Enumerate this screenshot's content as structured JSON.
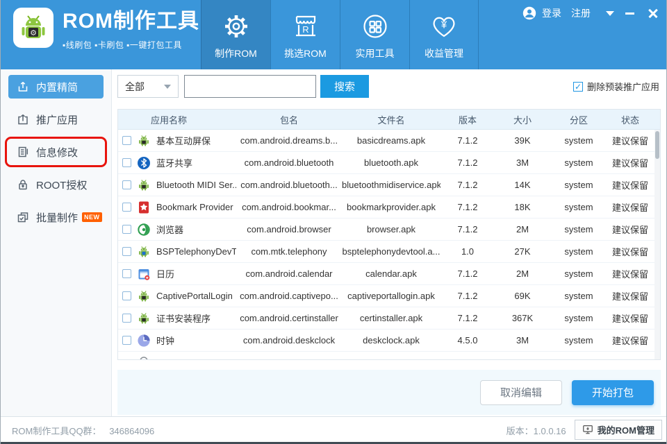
{
  "header": {
    "title": "ROM制作工具",
    "subtitle": "▪线刷包  ▪卡刷包  ▪一键打包工具",
    "account": {
      "login": "登录",
      "register": "注册"
    },
    "tabs": [
      {
        "label": "制作ROM",
        "icon": "gear-icon",
        "active": true
      },
      {
        "label": "挑选ROM",
        "icon": "store-icon",
        "active": false
      },
      {
        "label": "实用工具",
        "icon": "grid-icon",
        "active": false
      },
      {
        "label": "收益管理",
        "icon": "heart-yen-icon",
        "active": false
      }
    ]
  },
  "sidebar": {
    "items": [
      {
        "label": "内置精简",
        "icon": "trim-icon",
        "active": true
      },
      {
        "label": "推广应用",
        "icon": "promote-icon",
        "active": false
      },
      {
        "label": "信息修改",
        "icon": "info-edit-icon",
        "active": false,
        "annotated": true
      },
      {
        "label": "ROOT授权",
        "icon": "lock-icon",
        "active": false
      },
      {
        "label": "批量制作",
        "icon": "batch-icon",
        "active": false,
        "badge": "NEW"
      }
    ]
  },
  "filter": {
    "category_selected": "全部",
    "search_value": "",
    "search_button": "搜索",
    "checkbox_label": "删除预装推广应用",
    "checkbox_checked": true,
    "check_glyph": "✓"
  },
  "table": {
    "columns": [
      "应用名称",
      "包名",
      "文件名",
      "版本",
      "大小",
      "分区",
      "状态"
    ],
    "rows": [
      {
        "icon": "android",
        "app_name": "基本互动屏保",
        "package": "com.android.dreams.b...",
        "file": "basicdreams.apk",
        "version": "7.1.2",
        "size": "39K",
        "partition": "system",
        "status": "建议保留"
      },
      {
        "icon": "bluetooth",
        "app_name": "蓝牙共享",
        "package": "com.android.bluetooth",
        "file": "bluetooth.apk",
        "version": "7.1.2",
        "size": "3M",
        "partition": "system",
        "status": "建议保留"
      },
      {
        "icon": "android",
        "app_name": "Bluetooth MIDI Ser...",
        "package": "com.android.bluetooth...",
        "file": "bluetoothmidiservice.apk",
        "version": "7.1.2",
        "size": "14K",
        "partition": "system",
        "status": "建议保留"
      },
      {
        "icon": "bookmark",
        "app_name": "Bookmark Provider",
        "package": "com.android.bookmar...",
        "file": "bookmarkprovider.apk",
        "version": "7.1.2",
        "size": "18K",
        "partition": "system",
        "status": "建议保留"
      },
      {
        "icon": "browser",
        "app_name": "浏览器",
        "package": "com.android.browser",
        "file": "browser.apk",
        "version": "7.1.2",
        "size": "2M",
        "partition": "system",
        "status": "建议保留"
      },
      {
        "icon": "android-phone",
        "app_name": "BSPTelephonyDevT...",
        "package": "com.mtk.telephony",
        "file": "bsptelephonydevtool.a...",
        "version": "1.0",
        "size": "27K",
        "partition": "system",
        "status": "建议保留"
      },
      {
        "icon": "calendar",
        "app_name": "日历",
        "package": "com.android.calendar",
        "file": "calendar.apk",
        "version": "7.1.2",
        "size": "2M",
        "partition": "system",
        "status": "建议保留"
      },
      {
        "icon": "android",
        "app_name": "CaptivePortalLogin",
        "package": "com.android.captivepo...",
        "file": "captiveportallogin.apk",
        "version": "7.1.2",
        "size": "69K",
        "partition": "system",
        "status": "建议保留"
      },
      {
        "icon": "android",
        "app_name": "证书安装程序",
        "package": "com.android.certinstaller",
        "file": "certinstaller.apk",
        "version": "7.1.2",
        "size": "367K",
        "partition": "system",
        "status": "建议保留"
      },
      {
        "icon": "clock",
        "app_name": "时钟",
        "package": "com.android.deskclock",
        "file": "deskclock.apk",
        "version": "4.5.0",
        "size": "3M",
        "partition": "system",
        "status": "建议保留"
      }
    ]
  },
  "actions": {
    "cancel": "取消编辑",
    "start": "开始打包"
  },
  "footer": {
    "qq_label": "ROM制作工具QQ群：",
    "qq_number": "346864096",
    "version": "版本：1.0.0.16",
    "manage_button": "我的ROM管理"
  },
  "colors": {
    "header_blue": "#3a96da",
    "active_sidebar_blue": "#4aa1e0",
    "search_button_blue": "#1b9ae1",
    "start_button_blue": "#2e9ae8",
    "annotation_red": "#e8140d",
    "new_badge_orange": "#ff6000",
    "table_header_bg": "#e9f4fc"
  }
}
